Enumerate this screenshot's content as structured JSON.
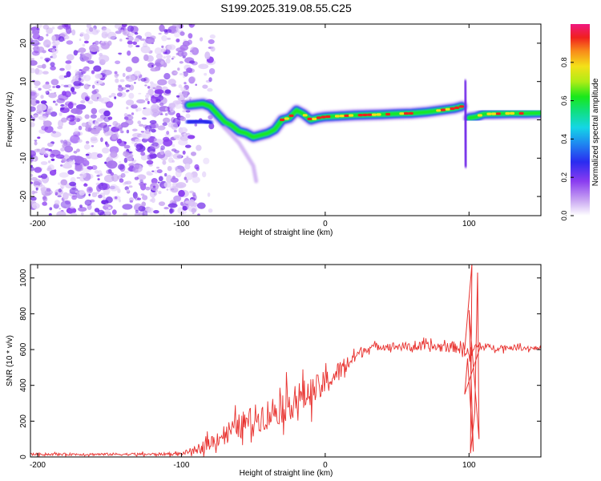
{
  "title": "S199.2025.319.08.55.C25",
  "colors": {
    "line": "#e8312e",
    "axis": "#000000",
    "scatter": "#8a3cf0"
  },
  "chart_data": [
    {
      "type": "heatmap",
      "xlabel": "Height of straight line (km)",
      "ylabel": "Frequency (Hz)",
      "xlim": [
        -205,
        150
      ],
      "ylim": [
        -25,
        25
      ],
      "xticks": [
        -200,
        -100,
        0,
        100
      ],
      "yticks": [
        -20,
        -10,
        0,
        10,
        20
      ],
      "noise_region_x": [
        -205,
        -90
      ],
      "ridge": {
        "description_points": [
          [
            -95,
            3.8
          ],
          [
            -90,
            4.0
          ],
          [
            -85,
            4.2
          ],
          [
            -80,
            3.5
          ],
          [
            -75,
            1.5
          ],
          [
            -70,
            -0.5
          ],
          [
            -65,
            -1.5
          ],
          [
            -60,
            -3.0
          ],
          [
            -55,
            -3.5
          ],
          [
            -50,
            -4.5
          ],
          [
            -45,
            -4.0
          ],
          [
            -40,
            -3.5
          ],
          [
            -35,
            -2.5
          ],
          [
            -30,
            0.0
          ],
          [
            -25,
            0.5
          ],
          [
            -20,
            2.5
          ],
          [
            -15,
            1.5
          ],
          [
            -10,
            0.0
          ],
          [
            -5,
            0.5
          ],
          [
            0,
            0.8
          ],
          [
            10,
            1.0
          ],
          [
            20,
            1.2
          ],
          [
            30,
            1.3
          ],
          [
            40,
            1.4
          ],
          [
            50,
            1.6
          ],
          [
            60,
            1.7
          ],
          [
            70,
            2.0
          ],
          [
            80,
            2.5
          ],
          [
            90,
            3.0
          ],
          [
            95,
            3.5
          ],
          [
            100,
            0.5
          ],
          [
            105,
            0.8
          ],
          [
            110,
            1.5
          ],
          [
            120,
            1.6
          ],
          [
            130,
            1.7
          ],
          [
            140,
            1.7
          ],
          [
            150,
            1.8
          ]
        ],
        "secondary_branch": [
          [
            -95,
            -0.5
          ],
          [
            -85,
            -0.3
          ],
          [
            -80,
            -0.8
          ]
        ],
        "tail": [
          [
            -70,
            -2
          ],
          [
            -65,
            -4
          ],
          [
            -60,
            -6
          ],
          [
            -55,
            -9
          ],
          [
            -50,
            -12
          ],
          [
            -48,
            -16
          ]
        ]
      },
      "colorbar": {
        "label": "Normalized spectral amplitude",
        "range": [
          0,
          1
        ],
        "ticks": [
          "0.0",
          "0.2",
          "0.4",
          "0.6",
          "0.8"
        ]
      }
    },
    {
      "type": "line",
      "xlabel": "Height of straight line (km)",
      "ylabel": "SNR (10 * v/v)",
      "xlim": [
        -205,
        150
      ],
      "ylim": [
        0,
        1075
      ],
      "xticks": [
        -200,
        -100,
        0,
        100
      ],
      "yticks": [
        0,
        200,
        400,
        600,
        800,
        1000
      ],
      "series": [
        {
          "name": "SNR",
          "envelope": [
            [
              -205,
              15
            ],
            [
              -180,
              15
            ],
            [
              -150,
              15
            ],
            [
              -120,
              15
            ],
            [
              -100,
              18
            ],
            [
              -90,
              40
            ],
            [
              -80,
              80
            ],
            [
              -70,
              130
            ],
            [
              -60,
              170
            ],
            [
              -50,
              210
            ],
            [
              -40,
              240
            ],
            [
              -30,
              280
            ],
            [
              -20,
              320
            ],
            [
              -10,
              360
            ],
            [
              0,
              410
            ],
            [
              10,
              480
            ],
            [
              20,
              560
            ],
            [
              30,
              610
            ],
            [
              40,
              620
            ],
            [
              60,
              615
            ],
            [
              80,
              615
            ],
            [
              90,
              615
            ],
            [
              95,
              610
            ],
            [
              98,
              600
            ],
            [
              100,
              560
            ],
            [
              105,
              620
            ],
            [
              110,
              615
            ],
            [
              120,
              610
            ],
            [
              130,
              612
            ],
            [
              140,
              608
            ],
            [
              150,
              610
            ]
          ],
          "noise_amplitude": [
            [
              -205,
              8
            ],
            [
              -100,
              10
            ],
            [
              -90,
              30
            ],
            [
              -80,
              50
            ],
            [
              -60,
              90
            ],
            [
              -40,
              110
            ],
            [
              -20,
              120
            ],
            [
              0,
              90
            ],
            [
              20,
              60
            ],
            [
              30,
              25
            ],
            [
              90,
              40
            ],
            [
              100,
              60
            ],
            [
              105,
              25
            ],
            [
              150,
              15
            ]
          ],
          "spikes": [
            [
              102,
              1075
            ],
            [
              101,
              20
            ],
            [
              104,
              250
            ],
            [
              106,
              1030
            ],
            [
              107,
              100
            ],
            [
              100,
              820
            ],
            [
              103,
              30
            ],
            [
              99,
              550
            ],
            [
              97,
              350
            ]
          ]
        }
      ]
    }
  ]
}
